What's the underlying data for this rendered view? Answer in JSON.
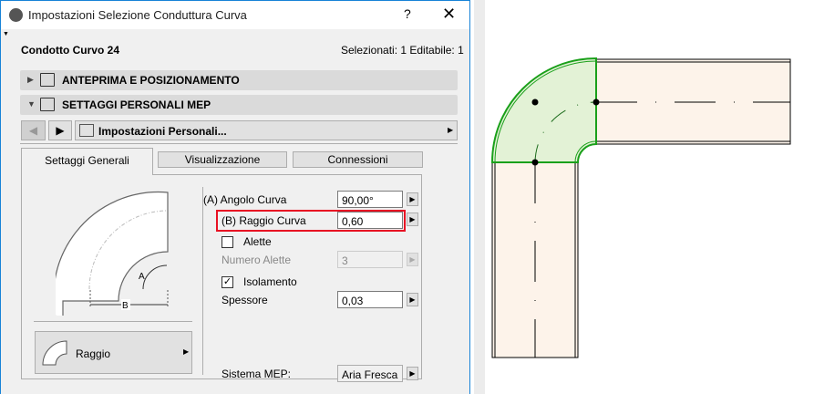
{
  "window": {
    "title": "Impostazioni Selezione Conduttura Curva",
    "help": "?",
    "close": "✕"
  },
  "header": {
    "element_name": "Condotto Curvo 24",
    "selection": "Selezionati: 1 Editabile: 1"
  },
  "panels": [
    {
      "label": "ANTEPRIMA E POSIZIONAMENTO",
      "expanded": false
    },
    {
      "label": "SETTAGGI PERSONALI MEP",
      "expanded": true
    }
  ],
  "nav": {
    "preset": "Impostazioni Personali..."
  },
  "tabs": [
    {
      "label": "Settaggi Generali",
      "active": true
    },
    {
      "label": "Visualizzazione"
    },
    {
      "label": "Connessioni"
    }
  ],
  "diagram": {
    "label_a": "A",
    "label_b": "B"
  },
  "shape_button": {
    "label": "Raggio"
  },
  "fields": {
    "angle": {
      "label": "(A) Angolo Curva",
      "value": "90,00°"
    },
    "radius": {
      "label": "(B) Raggio Curva",
      "value": "0,60",
      "highlight": "#e81123"
    },
    "fins": {
      "label": "Alette",
      "checked": false
    },
    "fin_count": {
      "label": "Numero Alette",
      "value": "3",
      "disabled": true
    },
    "insulation": {
      "label": "Isolamento",
      "checked": true
    },
    "thickness": {
      "label": "Spessore",
      "value": "0,03"
    },
    "mep_system": {
      "label": "Sistema MEP:",
      "value": "Aria Fresca"
    }
  },
  "colors": {
    "accent": "#1883d7",
    "selected_fill": "#e3f2d6",
    "selected_stroke": "#1aa01a",
    "duct_fill": "#fdf3ea"
  }
}
